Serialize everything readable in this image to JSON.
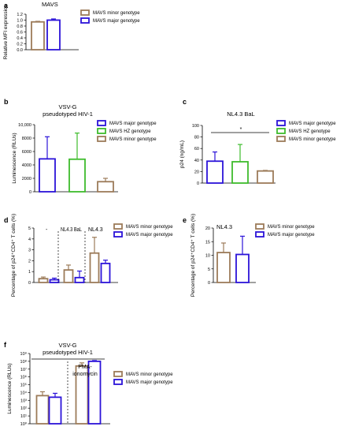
{
  "colors": {
    "minor": "#9c7b59",
    "major": "#2b13d9",
    "hz": "#3ebc2c",
    "axis": "#000000"
  },
  "chart_data": [
    {
      "panel": "a",
      "type": "bar",
      "title": "MAVS",
      "ylabel": "Relative MFI expression",
      "ylim": [
        0,
        1.2
      ],
      "yticks": [
        "0.0",
        "0.2",
        "0.4",
        "0.6",
        "0.8",
        "1.0",
        "1.2"
      ],
      "legend_position": "top-right",
      "series": [
        {
          "name": "MAVS minor genotype",
          "color": "minor",
          "value": 0.94,
          "err": 0.02
        },
        {
          "name": "MAVS major genotype",
          "color": "major",
          "value": 1.0,
          "err": 0.04
        }
      ]
    },
    {
      "panel": "b",
      "type": "bar",
      "title": "VSV-G",
      "subtitle": "pseudotyped HIV-1",
      "ylabel": "Luminescence (RLUs)",
      "ylim": [
        0,
        10000
      ],
      "yticks": [
        "0",
        "2000",
        "4000",
        "6000",
        "8000",
        "10,000"
      ],
      "legend_position": "top-right",
      "series": [
        {
          "name": "MAVS major genotype",
          "color": "major",
          "value": 4900,
          "err": 3300
        },
        {
          "name": "MAVS HZ genotype",
          "color": "hz",
          "value": 4850,
          "err": 3900
        },
        {
          "name": "MAVS minor genotype",
          "color": "minor",
          "value": 1500,
          "err": 500
        }
      ]
    },
    {
      "panel": "c",
      "type": "bar",
      "title": "NL4.3 BaL",
      "ylabel": "p24 (ng/mL)",
      "ylim": [
        0,
        100
      ],
      "yticks": [
        "0",
        "20",
        "40",
        "60",
        "80",
        "100"
      ],
      "significance": "*",
      "legend_position": "top-right",
      "series": [
        {
          "name": "MAVS major genotype",
          "color": "major",
          "value": 38,
          "err": 16
        },
        {
          "name": "MAVS HZ genotype",
          "color": "hz",
          "value": 37,
          "err": 30
        },
        {
          "name": "MAVS minor genotype",
          "color": "minor",
          "value": 21,
          "err": 1
        }
      ]
    },
    {
      "panel": "d",
      "type": "bar",
      "ylabel": "Percentage of p24⁺CD4⁺ T cells (%)",
      "ylim": [
        0,
        5
      ],
      "yticks": [
        "0",
        "1",
        "2",
        "3",
        "4",
        "5"
      ],
      "group_labels": [
        "-",
        "NL4.3 BaL",
        "NL4.3"
      ],
      "legend_position": "top-right",
      "series": [
        {
          "name": "MAVS minor genotype",
          "color": "minor",
          "values": [
            0.35,
            1.15,
            2.7
          ],
          "err": [
            0.15,
            0.45,
            1.45
          ]
        },
        {
          "name": "MAVS major genotype",
          "color": "major",
          "values": [
            0.25,
            0.45,
            1.75
          ],
          "err": [
            0.15,
            0.6,
            0.3
          ]
        }
      ]
    },
    {
      "panel": "e",
      "type": "bar",
      "title": "NL4.3",
      "ylabel": "Percentage of p24⁺CD4⁺ T cells (%)",
      "ylim": [
        0,
        20
      ],
      "yticks": [
        "0",
        "5",
        "10",
        "15",
        "20"
      ],
      "legend_position": "top-right",
      "series": [
        {
          "name": "MAVS minor genotype",
          "color": "minor",
          "value": 11,
          "err": 3.5
        },
        {
          "name": "MAVS major genotype",
          "color": "major",
          "value": 10.3,
          "err": 6.7
        }
      ]
    },
    {
      "panel": "f",
      "type": "bar",
      "title": "VSV-G",
      "subtitle": "pseudotyped HIV-1",
      "ylabel": "Luminescence (RLUs)",
      "log_scale": true,
      "ylim_exp": [
        0,
        9
      ],
      "yticks": [
        "10⁰",
        "10¹",
        "10²",
        "10³",
        "10⁴",
        "10⁵",
        "10⁶",
        "10⁷",
        "10⁸",
        "10⁹"
      ],
      "group_labels": [
        "",
        "PMA-ionomycin"
      ],
      "legend_position": "right",
      "series": [
        {
          "name": "MAVS minor genotype",
          "color": "minor",
          "values_log10": [
            3.6,
            7.4
          ],
          "err_log10": [
            0.5,
            0.4
          ]
        },
        {
          "name": "MAVS major genotype",
          "color": "major",
          "values_log10": [
            3.4,
            8.0
          ],
          "err_log10": [
            0.5,
            0.1
          ]
        }
      ]
    }
  ],
  "panel_letters": [
    "a",
    "b",
    "c",
    "d",
    "e",
    "f"
  ]
}
